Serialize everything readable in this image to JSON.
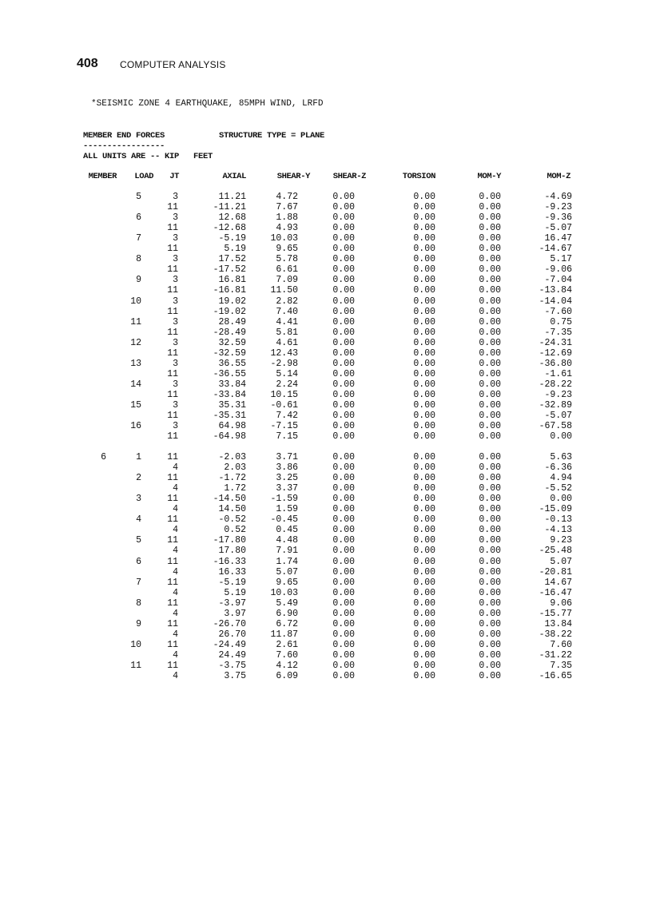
{
  "page": {
    "number": "408",
    "running_head": "COMPUTER ANALYSIS"
  },
  "output": {
    "title": "*SEISMIC ZONE 4 EARTHQUAKE, 85MPH WIND, LRFD",
    "section": "MEMBER END FORCES",
    "structure_type": "STRUCTURE TYPE = PLANE",
    "underline": "-----------------",
    "units": "ALL UNITS ARE -- KIP   FEET"
  },
  "table": {
    "columns": [
      "MEMBER",
      "LOAD",
      "JT",
      "AXIAL",
      "SHEAR-Y",
      "SHEAR-Z",
      "TORSION",
      "MOM-Y",
      "MOM-Z"
    ],
    "groups": [
      {
        "rows": [
          [
            "",
            "5",
            "3",
            "11.21",
            "4.72",
            "0.00",
            "0.00",
            "0.00",
            "-4.69"
          ],
          [
            "",
            "",
            "11",
            "-11.21",
            "7.67",
            "0.00",
            "0.00",
            "0.00",
            "-9.23"
          ],
          [
            "",
            "6",
            "3",
            "12.68",
            "1.88",
            "0.00",
            "0.00",
            "0.00",
            "-9.36"
          ],
          [
            "",
            "",
            "11",
            "-12.68",
            "4.93",
            "0.00",
            "0.00",
            "0.00",
            "-5.07"
          ],
          [
            "",
            "7",
            "3",
            "-5.19",
            "10.03",
            "0.00",
            "0.00",
            "0.00",
            "16.47"
          ],
          [
            "",
            "",
            "11",
            "5.19",
            "9.65",
            "0.00",
            "0.00",
            "0.00",
            "-14.67"
          ],
          [
            "",
            "8",
            "3",
            "17.52",
            "5.78",
            "0.00",
            "0.00",
            "0.00",
            "5.17"
          ],
          [
            "",
            "",
            "11",
            "-17.52",
            "6.61",
            "0.00",
            "0.00",
            "0.00",
            "-9.06"
          ],
          [
            "",
            "9",
            "3",
            "16.81",
            "7.09",
            "0.00",
            "0.00",
            "0.00",
            "-7.04"
          ],
          [
            "",
            "",
            "11",
            "-16.81",
            "11.50",
            "0.00",
            "0.00",
            "0.00",
            "-13.84"
          ],
          [
            "",
            "10",
            "3",
            "19.02",
            "2.82",
            "0.00",
            "0.00",
            "0.00",
            "-14.04"
          ],
          [
            "",
            "",
            "11",
            "-19.02",
            "7.40",
            "0.00",
            "0.00",
            "0.00",
            "-7.60"
          ],
          [
            "",
            "11",
            "3",
            "28.49",
            "4.41",
            "0.00",
            "0.00",
            "0.00",
            "0.75"
          ],
          [
            "",
            "",
            "11",
            "-28.49",
            "5.81",
            "0.00",
            "0.00",
            "0.00",
            "-7.35"
          ],
          [
            "",
            "12",
            "3",
            "32.59",
            "4.61",
            "0.00",
            "0.00",
            "0.00",
            "-24.31"
          ],
          [
            "",
            "",
            "11",
            "-32.59",
            "12.43",
            "0.00",
            "0.00",
            "0.00",
            "-12.69"
          ],
          [
            "",
            "13",
            "3",
            "36.55",
            "-2.98",
            "0.00",
            "0.00",
            "0.00",
            "-36.80"
          ],
          [
            "",
            "",
            "11",
            "-36.55",
            "5.14",
            "0.00",
            "0.00",
            "0.00",
            "-1.61"
          ],
          [
            "",
            "14",
            "3",
            "33.84",
            "2.24",
            "0.00",
            "0.00",
            "0.00",
            "-28.22"
          ],
          [
            "",
            "",
            "11",
            "-33.84",
            "10.15",
            "0.00",
            "0.00",
            "0.00",
            "-9.23"
          ],
          [
            "",
            "15",
            "3",
            "35.31",
            "-0.61",
            "0.00",
            "0.00",
            "0.00",
            "-32.89"
          ],
          [
            "",
            "",
            "11",
            "-35.31",
            "7.42",
            "0.00",
            "0.00",
            "0.00",
            "-5.07"
          ],
          [
            "",
            "16",
            "3",
            "64.98",
            "-7.15",
            "0.00",
            "0.00",
            "0.00",
            "-67.58"
          ],
          [
            "",
            "",
            "11",
            "-64.98",
            "7.15",
            "0.00",
            "0.00",
            "0.00",
            "0.00"
          ]
        ]
      },
      {
        "rows": [
          [
            "6",
            "1",
            "11",
            "-2.03",
            "3.71",
            "0.00",
            "0.00",
            "0.00",
            "5.63"
          ],
          [
            "",
            "",
            "4",
            "2.03",
            "3.86",
            "0.00",
            "0.00",
            "0.00",
            "-6.36"
          ],
          [
            "",
            "2",
            "11",
            "-1.72",
            "3.25",
            "0.00",
            "0.00",
            "0.00",
            "4.94"
          ],
          [
            "",
            "",
            "4",
            "1.72",
            "3.37",
            "0.00",
            "0.00",
            "0.00",
            "-5.52"
          ],
          [
            "",
            "3",
            "11",
            "-14.50",
            "-1.59",
            "0.00",
            "0.00",
            "0.00",
            "0.00"
          ],
          [
            "",
            "",
            "4",
            "14.50",
            "1.59",
            "0.00",
            "0.00",
            "0.00",
            "-15.09"
          ],
          [
            "",
            "4",
            "11",
            "-0.52",
            "-0.45",
            "0.00",
            "0.00",
            "0.00",
            "-0.13"
          ],
          [
            "",
            "",
            "4",
            "0.52",
            "0.45",
            "0.00",
            "0.00",
            "0.00",
            "-4.13"
          ],
          [
            "",
            "5",
            "11",
            "-17.80",
            "4.48",
            "0.00",
            "0.00",
            "0.00",
            "9.23"
          ],
          [
            "",
            "",
            "4",
            "17.80",
            "7.91",
            "0.00",
            "0.00",
            "0.00",
            "-25.48"
          ],
          [
            "",
            "6",
            "11",
            "-16.33",
            "1.74",
            "0.00",
            "0.00",
            "0.00",
            "5.07"
          ],
          [
            "",
            "",
            "4",
            "16.33",
            "5.07",
            "0.00",
            "0.00",
            "0.00",
            "-20.81"
          ],
          [
            "",
            "7",
            "11",
            "-5.19",
            "9.65",
            "0.00",
            "0.00",
            "0.00",
            "14.67"
          ],
          [
            "",
            "",
            "4",
            "5.19",
            "10.03",
            "0.00",
            "0.00",
            "0.00",
            "-16.47"
          ],
          [
            "",
            "8",
            "11",
            "-3.97",
            "5.49",
            "0.00",
            "0.00",
            "0.00",
            "9.06"
          ],
          [
            "",
            "",
            "4",
            "3.97",
            "6.90",
            "0.00",
            "0.00",
            "0.00",
            "-15.77"
          ],
          [
            "",
            "9",
            "11",
            "-26.70",
            "6.72",
            "0.00",
            "0.00",
            "0.00",
            "13.84"
          ],
          [
            "",
            "",
            "4",
            "26.70",
            "11.87",
            "0.00",
            "0.00",
            "0.00",
            "-38.22"
          ],
          [
            "",
            "10",
            "11",
            "-24.49",
            "2.61",
            "0.00",
            "0.00",
            "0.00",
            "7.60"
          ],
          [
            "",
            "",
            "4",
            "24.49",
            "7.60",
            "0.00",
            "0.00",
            "0.00",
            "-31.22"
          ],
          [
            "",
            "11",
            "11",
            "-3.75",
            "4.12",
            "0.00",
            "0.00",
            "0.00",
            "7.35"
          ],
          [
            "",
            "",
            "4",
            "3.75",
            "6.09",
            "0.00",
            "0.00",
            "0.00",
            "-16.65"
          ]
        ]
      }
    ]
  }
}
